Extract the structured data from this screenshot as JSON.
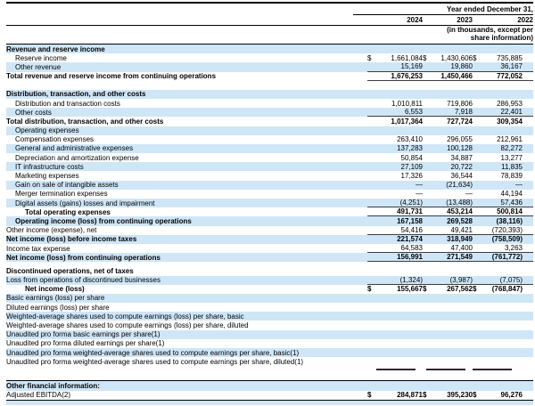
{
  "colors": {
    "band_blue": "#cfe6f7",
    "rule_dark": "#3d3d3d",
    "line_black": "#000000"
  },
  "header": {
    "period_label": "Year ended December 31,",
    "years": [
      "2024",
      "2023",
      "2022"
    ],
    "units_note": "(in thousands, except per share information)"
  },
  "rows": [
    {
      "label": "Revenue and reserve income",
      "indent": 0,
      "bold": true,
      "shade": true,
      "values": null
    },
    {
      "label": "Reserve income",
      "indent": 1,
      "bold": false,
      "shade": false,
      "dollar": true,
      "rule": false,
      "values": [
        "1,661,084",
        "1,430,606",
        "735,885"
      ]
    },
    {
      "label": "Other revenue",
      "indent": 1,
      "bold": false,
      "shade": true,
      "dollar": false,
      "rule": true,
      "values": [
        "15,169",
        "19,860",
        "36,167"
      ]
    },
    {
      "label": "Total revenue and reserve income from continuing operations",
      "indent": 0,
      "bold": true,
      "shade": false,
      "dollar": false,
      "rule": true,
      "values": [
        "1,676,253",
        "1,450,466",
        "772,052"
      ]
    },
    {
      "type": "spacer-lg"
    },
    {
      "label": "Distribution, transaction, and other costs",
      "indent": 0,
      "bold": true,
      "shade": true,
      "values": null
    },
    {
      "label": "Distribution and transaction costs",
      "indent": 1,
      "bold": false,
      "shade": false,
      "dollar": false,
      "rule": false,
      "values": [
        "1,010,811",
        "719,806",
        "286,953"
      ]
    },
    {
      "label": "Other costs",
      "indent": 1,
      "bold": false,
      "shade": true,
      "dollar": false,
      "rule": true,
      "values": [
        "6,553",
        "7,918",
        "22,401"
      ]
    },
    {
      "label": "Total distribution, transaction, and other costs",
      "indent": 0,
      "bold": true,
      "shade": false,
      "dollar": false,
      "rule": false,
      "values": [
        "1,017,364",
        "727,724",
        "309,354"
      ]
    },
    {
      "label": "Operating expenses",
      "indent": 1,
      "bold": false,
      "shade": true,
      "values": null
    },
    {
      "label": "Compensation expenses",
      "indent": 1,
      "bold": false,
      "shade": false,
      "dollar": false,
      "rule": false,
      "values": [
        "263,410",
        "296,055",
        "212,961"
      ]
    },
    {
      "label": "General and administrative expenses",
      "indent": 1,
      "bold": false,
      "shade": true,
      "dollar": false,
      "rule": false,
      "values": [
        "137,283",
        "100,128",
        "82,272"
      ]
    },
    {
      "label": "Depreciation and amortization expense",
      "indent": 1,
      "bold": false,
      "shade": false,
      "dollar": false,
      "rule": false,
      "values": [
        "50,854",
        "34,887",
        "13,277"
      ]
    },
    {
      "label": "IT infrastructure costs",
      "indent": 1,
      "bold": false,
      "shade": true,
      "dollar": false,
      "rule": false,
      "values": [
        "27,109",
        "20,722",
        "11,835"
      ]
    },
    {
      "label": "Marketing expenses",
      "indent": 1,
      "bold": false,
      "shade": false,
      "dollar": false,
      "rule": false,
      "values": [
        "17,326",
        "36,544",
        "78,839"
      ]
    },
    {
      "label": "Gain on sale of intangible assets",
      "indent": 1,
      "bold": false,
      "shade": true,
      "dollar": false,
      "rule": false,
      "values": [
        "—",
        "(21,634)",
        "—"
      ]
    },
    {
      "label": "Merger termination expenses",
      "indent": 1,
      "bold": false,
      "shade": false,
      "dollar": false,
      "rule": false,
      "values": [
        "—",
        "—",
        "44,194"
      ]
    },
    {
      "label": "Digital assets (gains) losses and impairment",
      "indent": 1,
      "bold": false,
      "shade": true,
      "dollar": false,
      "rule": true,
      "values": [
        "(4,251)",
        "(13,488)",
        "57,436"
      ]
    },
    {
      "label": "Total operating expenses",
      "indent": 2,
      "bold": true,
      "shade": false,
      "dollar": false,
      "rule": true,
      "values": [
        "491,731",
        "453,214",
        "500,814"
      ]
    },
    {
      "label": "Operating income (loss) from continuing operations",
      "indent": 1,
      "bold": true,
      "shade": true,
      "dollar": false,
      "rule": false,
      "values": [
        "167,158",
        "269,528",
        "(38,116)"
      ]
    },
    {
      "label": "Other income (expense), net",
      "indent": 0,
      "bold": false,
      "shade": false,
      "dollar": false,
      "rule": true,
      "values": [
        "54,416",
        "49,421",
        "(720,393)"
      ]
    },
    {
      "label": "Net income (loss) before income taxes",
      "indent": 0,
      "bold": true,
      "shade": true,
      "dollar": false,
      "rule": false,
      "values": [
        "221,574",
        "318,949",
        "(758,509)"
      ]
    },
    {
      "label": "Income tax expense",
      "indent": 0,
      "bold": false,
      "shade": false,
      "dollar": false,
      "rule": true,
      "values": [
        "64,583",
        "47,400",
        "3,263"
      ]
    },
    {
      "label": "Net income (loss) from continuing operations",
      "indent": 0,
      "bold": true,
      "shade": true,
      "dollar": false,
      "rule": true,
      "values": [
        "156,991",
        "271,549",
        "(761,772)"
      ]
    },
    {
      "type": "spacer-sm"
    },
    {
      "label": "Discontinued operations, net of taxes",
      "indent": 0,
      "bold": true,
      "shade": false,
      "values": null
    },
    {
      "label": "Loss from operations of discontinued businesses",
      "indent": 0,
      "bold": false,
      "shade": true,
      "dollar": false,
      "rule": true,
      "values": [
        "(1,324)",
        "(3,987)",
        "(7,075)"
      ]
    },
    {
      "label": "Net income (loss)",
      "indent": 2,
      "bold": true,
      "shade": false,
      "dollar": true,
      "rule": false,
      "values": [
        "155,667",
        "267,562",
        "(768,847)"
      ]
    },
    {
      "label": "Basic earnings (loss) per share",
      "indent": 0,
      "bold": false,
      "shade": true,
      "values": null
    },
    {
      "label": "Diluted earnings (loss) per share",
      "indent": 0,
      "bold": false,
      "shade": false,
      "values": null
    },
    {
      "label": "Weighted-average shares used to compute earnings (loss) per share, basic",
      "indent": 0,
      "bold": false,
      "shade": true,
      "values": null
    },
    {
      "label": "Weighted-average shares used to compute earnings (loss) per share, diluted",
      "indent": 0,
      "bold": false,
      "shade": false,
      "values": null
    },
    {
      "label": "Unaudited pro forma basic earnings per share(1)",
      "indent": 0,
      "bold": false,
      "shade": true,
      "values": null
    },
    {
      "label": "Unaudited pro forma diluted earnings per share(1)",
      "indent": 0,
      "bold": false,
      "shade": false,
      "values": null
    },
    {
      "label": "Unaudited pro forma weighted-average shares used to compute earnings per share, basic(1)",
      "indent": 0,
      "bold": false,
      "shade": true,
      "values": null
    },
    {
      "label": "Unaudited pro forma weighted-average shares used to compute earnings per share, diluted(1)",
      "indent": 0,
      "bold": false,
      "shade": false,
      "values": null
    },
    {
      "type": "bars"
    },
    {
      "type": "rule-spacer"
    },
    {
      "label": "Other financial information:",
      "indent": 0,
      "bold": true,
      "shade": true,
      "values": null
    },
    {
      "label": "Adjusted EBITDA(2)",
      "indent": 0,
      "bold": false,
      "shade": false,
      "dollar": true,
      "vbold": true,
      "rule": false,
      "values": [
        "284,871",
        "395,230",
        "96,276"
      ]
    }
  ]
}
